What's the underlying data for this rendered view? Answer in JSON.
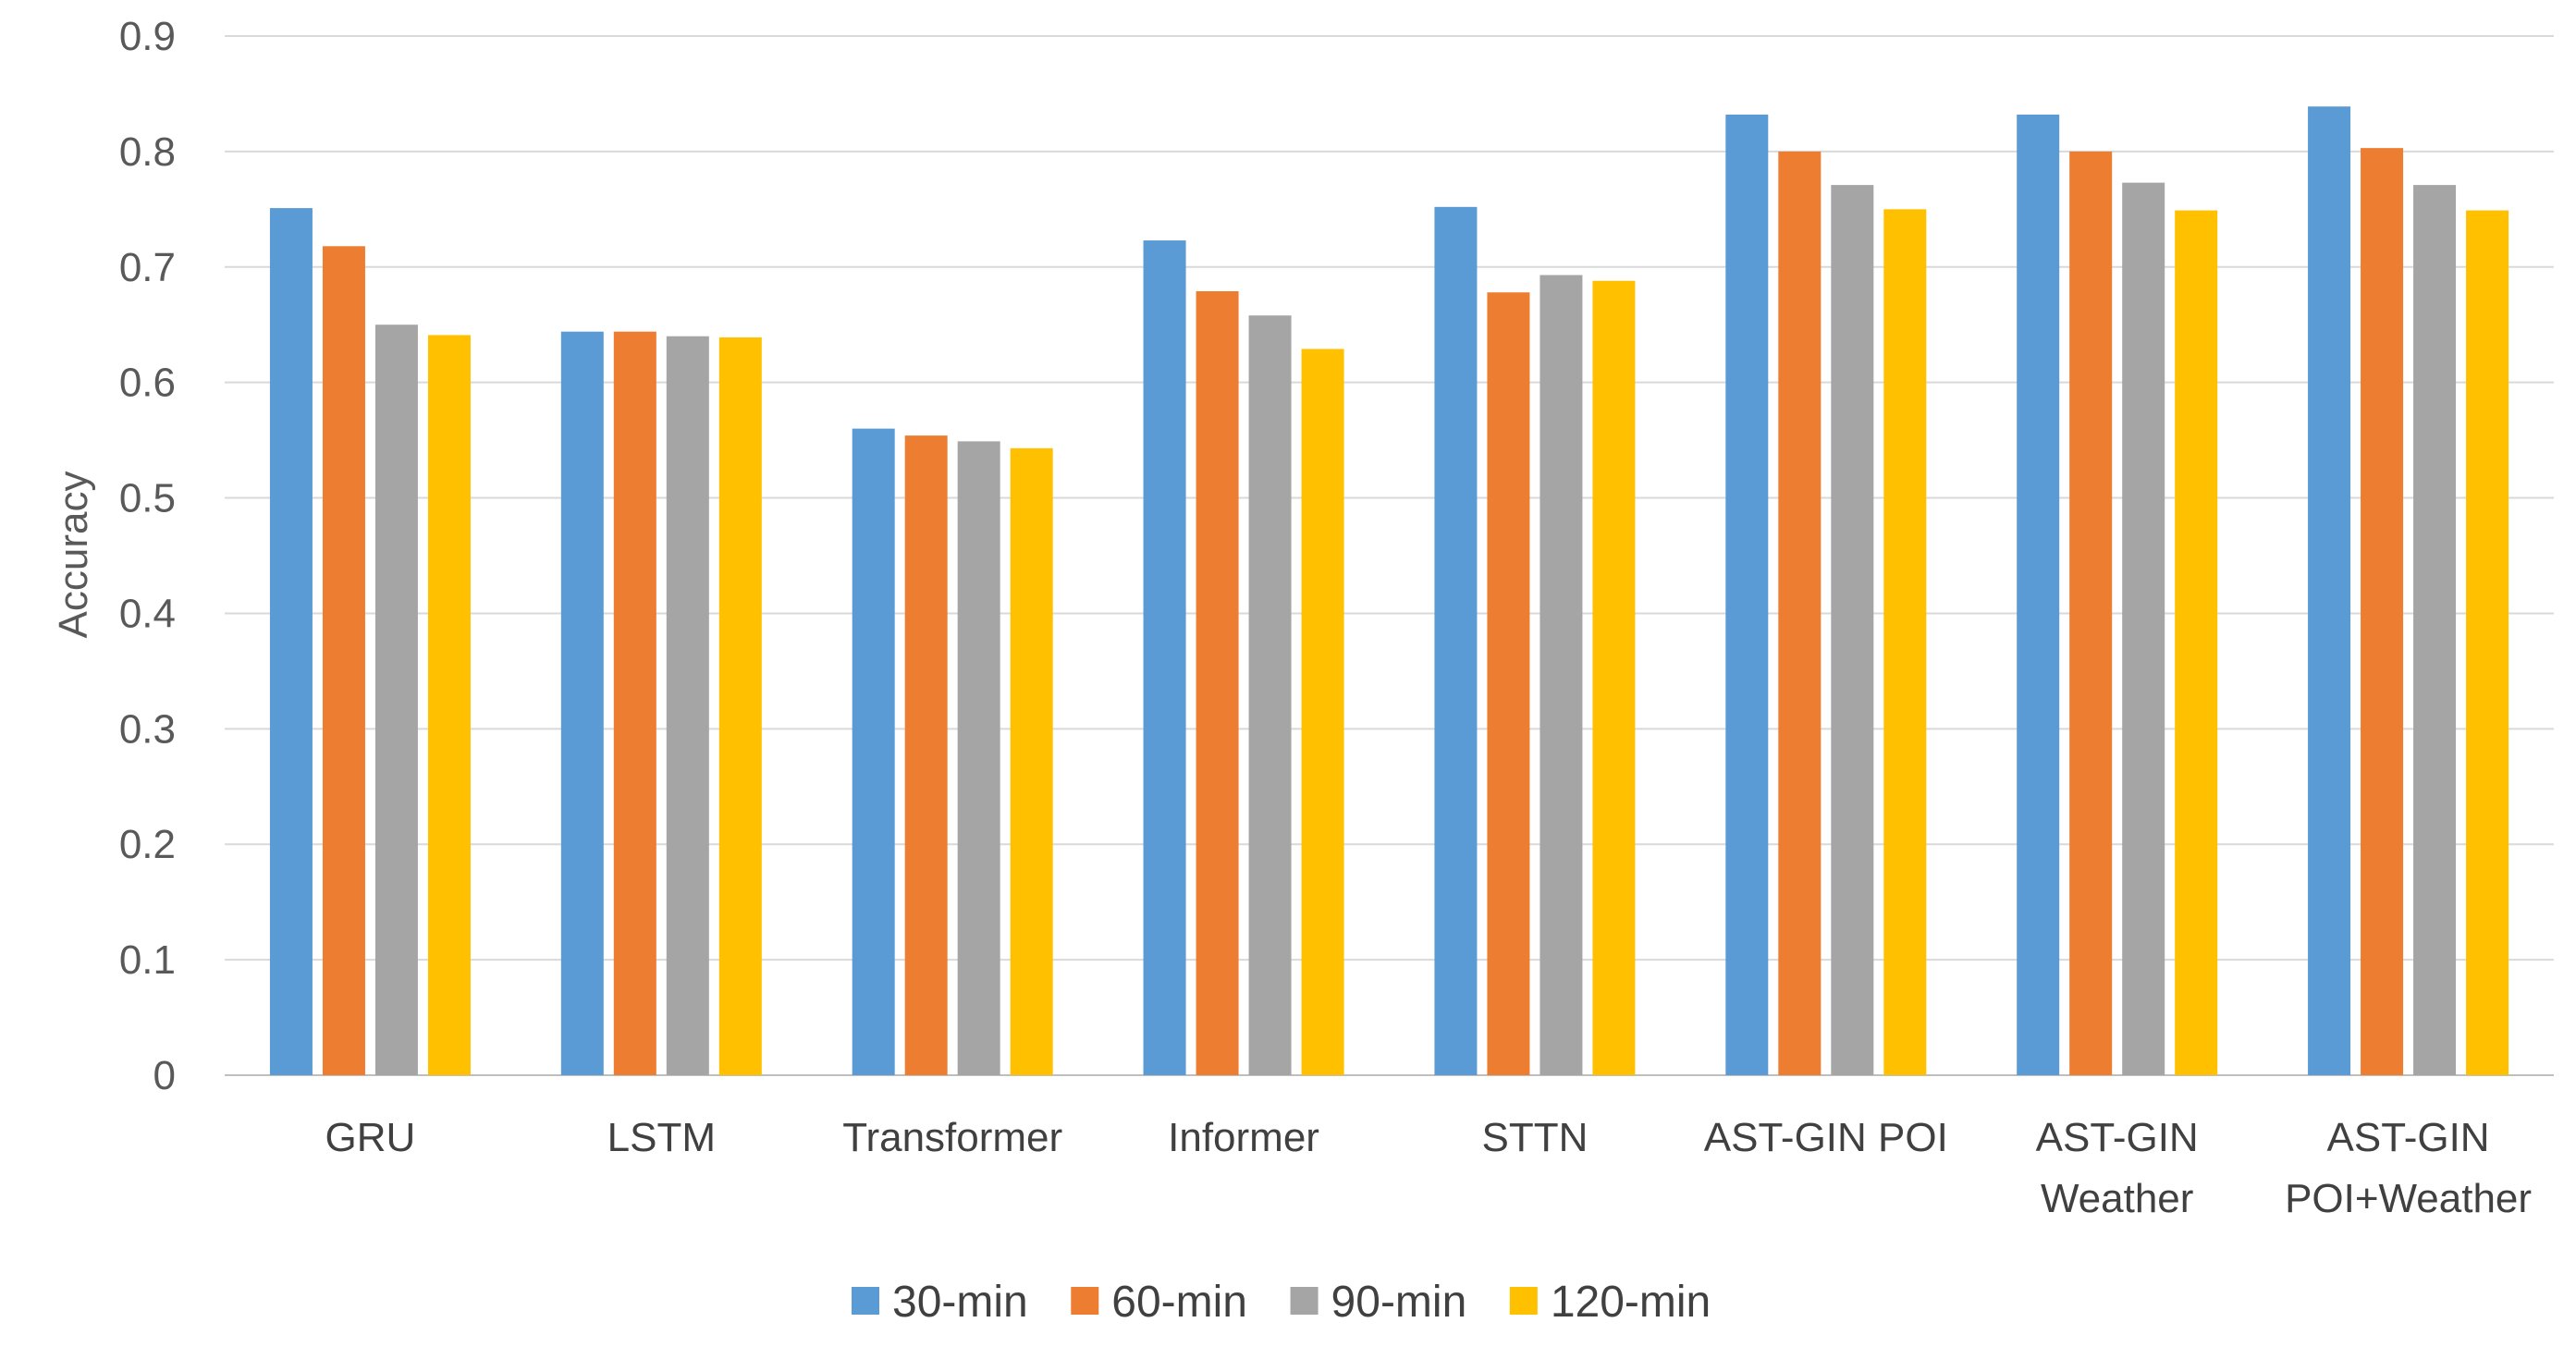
{
  "chart_data": {
    "type": "bar",
    "title": "",
    "xlabel": "",
    "ylabel": "Accuracy",
    "ylim": [
      0,
      0.9
    ],
    "yticks": [
      "0",
      "0.1",
      "0.2",
      "0.3",
      "0.4",
      "0.5",
      "0.6",
      "0.7",
      "0.8",
      "0.9"
    ],
    "grid": true,
    "legend_position": "bottom",
    "categories": [
      [
        "GRU"
      ],
      [
        "LSTM"
      ],
      [
        "Transformer"
      ],
      [
        "Informer"
      ],
      [
        "STTN"
      ],
      [
        "AST-GIN POI"
      ],
      [
        "AST-GIN",
        "Weather"
      ],
      [
        "AST-GIN",
        "POI+Weather"
      ]
    ],
    "series": [
      {
        "name": "30-min",
        "color": "#5B9BD5",
        "values": [
          0.751,
          0.644,
          0.56,
          0.723,
          0.752,
          0.832,
          0.832,
          0.839
        ]
      },
      {
        "name": "60-min",
        "color": "#ED7D31",
        "values": [
          0.718,
          0.644,
          0.554,
          0.679,
          0.678,
          0.8,
          0.8,
          0.803
        ]
      },
      {
        "name": "90-min",
        "color": "#A5A5A5",
        "values": [
          0.65,
          0.64,
          0.549,
          0.658,
          0.693,
          0.771,
          0.773,
          0.771
        ]
      },
      {
        "name": "120-min",
        "color": "#FFC000",
        "values": [
          0.641,
          0.639,
          0.543,
          0.629,
          0.688,
          0.75,
          0.749,
          0.749
        ]
      }
    ]
  }
}
